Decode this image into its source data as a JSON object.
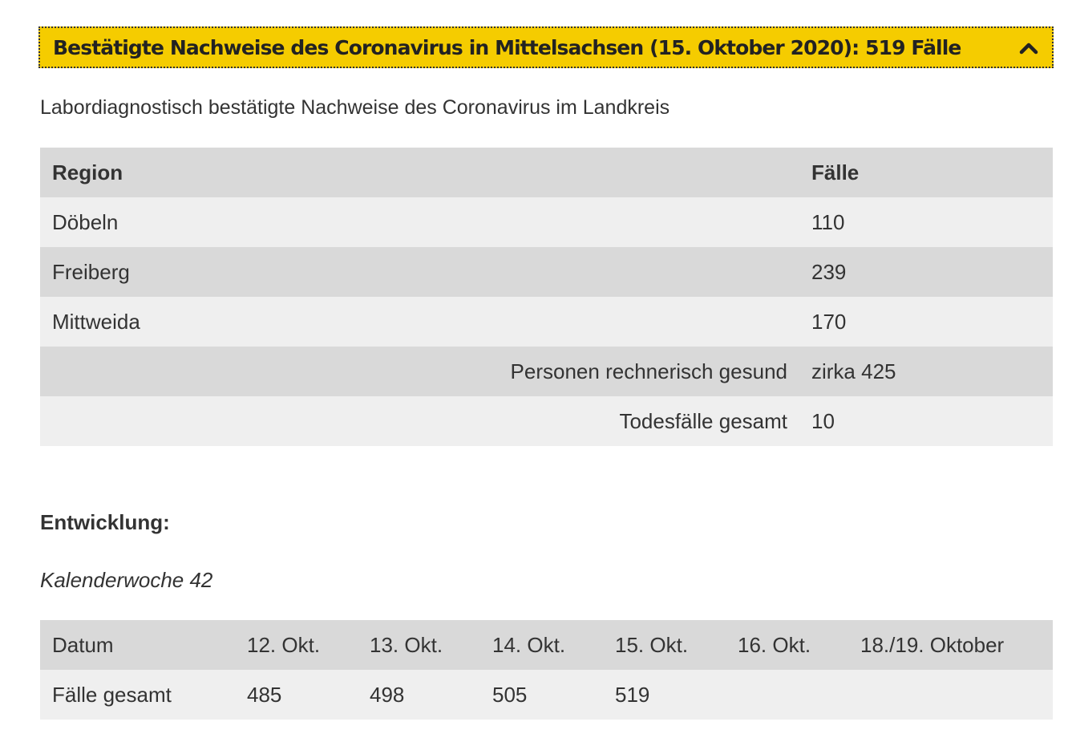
{
  "accordion": {
    "title": "Bestätigte Nachweise des Coronavirus in Mittelsachsen (15. Oktober 2020): 519 Fälle",
    "toggle_icon": "chevron-up-icon",
    "accent_color": "#f5cc00"
  },
  "intro_text": "Labordiagnostisch bestätigte Nachweise des Coronavirus im Landkreis",
  "cases_table": {
    "headers": [
      "Region",
      "Fälle"
    ],
    "rows": [
      {
        "region": "Döbeln",
        "cases": "110"
      },
      {
        "region": "Freiberg",
        "cases": "239"
      },
      {
        "region": "Mittweida",
        "cases": "170"
      }
    ],
    "summary": [
      {
        "label": "Personen rechnerisch gesund",
        "value": "zirka 425"
      },
      {
        "label": "Todesfälle gesamt",
        "value": "10"
      }
    ]
  },
  "development": {
    "heading": "Entwicklung:",
    "week_label": "Kalenderwoche 42",
    "table": {
      "headers": [
        "Datum",
        "12. Okt.",
        "13. Okt.",
        "14. Okt.",
        "15. Okt.",
        "16. Okt.",
        "18./19. Oktober"
      ],
      "row": [
        "Fälle gesamt",
        "485",
        "498",
        "505",
        "519",
        "",
        ""
      ]
    }
  }
}
